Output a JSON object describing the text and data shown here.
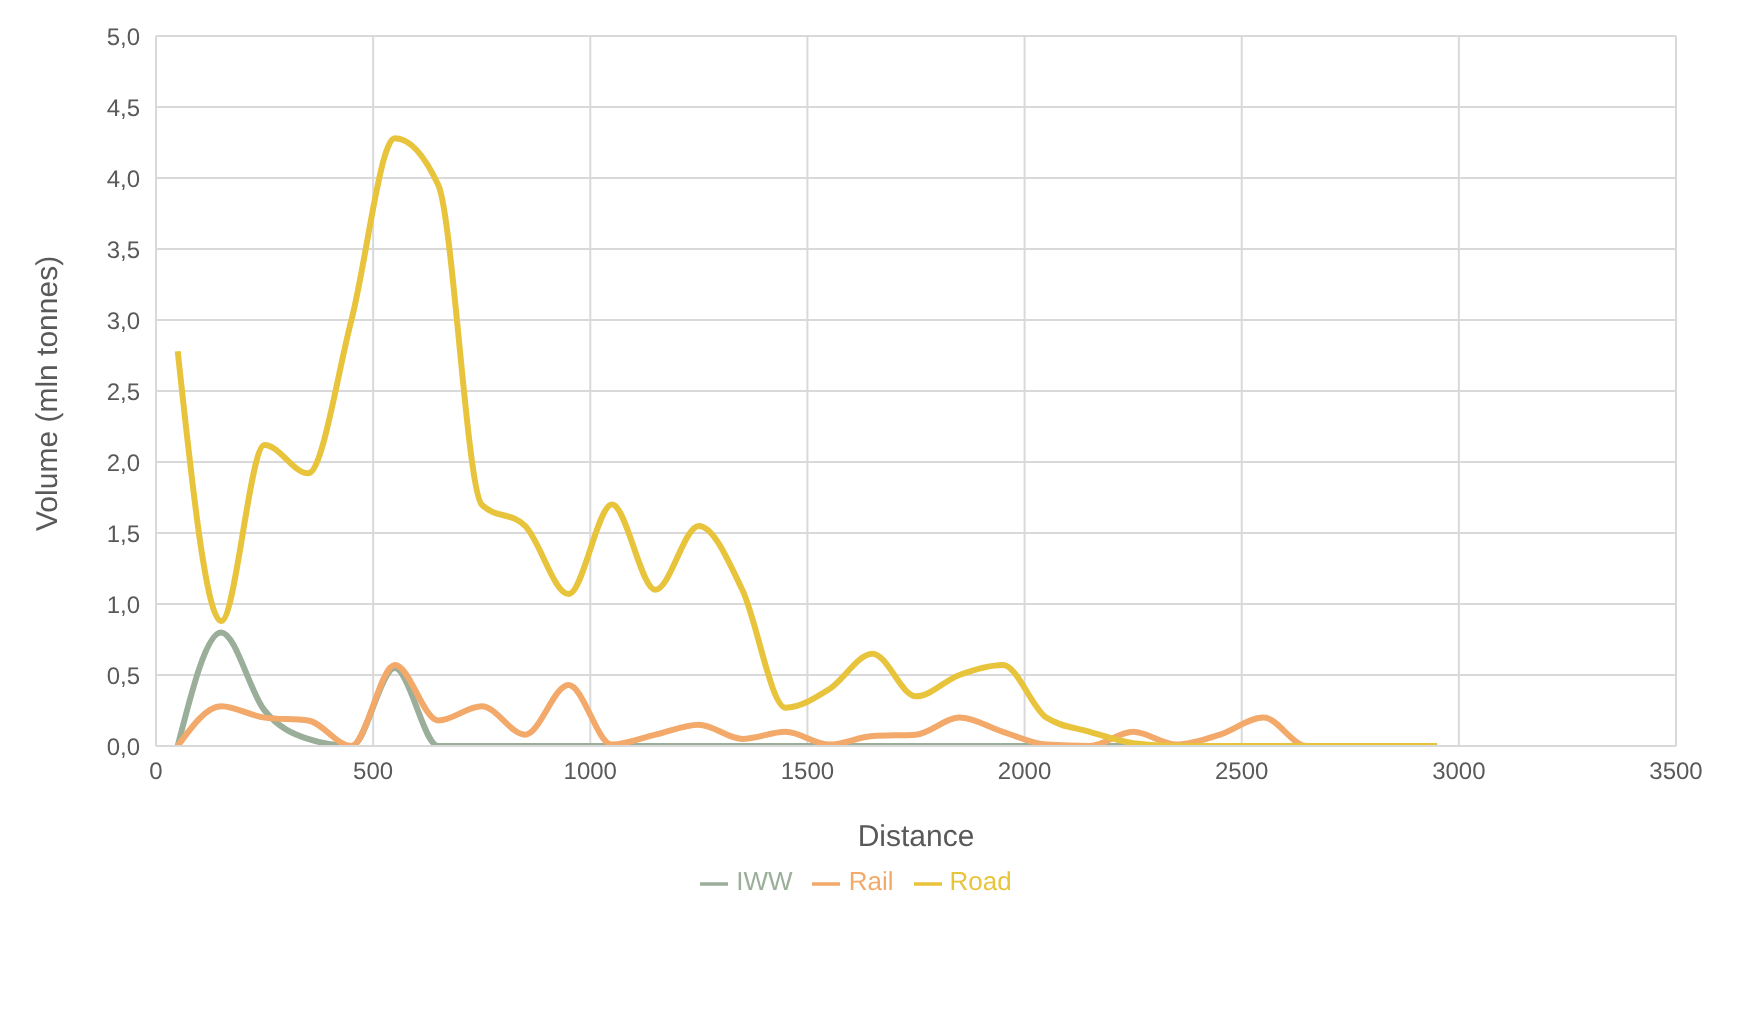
{
  "chart_data": {
    "type": "line",
    "xlabel": "Distance",
    "ylabel": "Volume (mln tonnes)",
    "x": [
      50,
      150,
      250,
      350,
      450,
      550,
      650,
      750,
      850,
      950,
      1050,
      1150,
      1250,
      1350,
      1450,
      1550,
      1650,
      1750,
      1850,
      1950,
      2050,
      2150,
      2250,
      2350,
      2450,
      2550,
      2650,
      2750,
      2850,
      2950
    ],
    "series": [
      {
        "name": "IWW",
        "color": "#9aae9a",
        "values": [
          0,
          0.8,
          0.25,
          0.05,
          0,
          0.55,
          0,
          0,
          0,
          0,
          0,
          0,
          0,
          0,
          0,
          0,
          0,
          0,
          0,
          0,
          0,
          0,
          0,
          0,
          null,
          null,
          null,
          null,
          null,
          null
        ]
      },
      {
        "name": "Rail",
        "color": "#f2a96a",
        "values": [
          0,
          0.28,
          0.2,
          0.18,
          0,
          0.57,
          0.18,
          0.28,
          0.08,
          0.43,
          0.01,
          0.08,
          0.15,
          0.05,
          0.1,
          0.01,
          0.07,
          0.08,
          0.2,
          0.1,
          0.01,
          0,
          0.1,
          0.01,
          0.08,
          0.2,
          0,
          0,
          null,
          null
        ]
      },
      {
        "name": "Road",
        "color": "#e8c43c",
        "values": [
          2.78,
          0.88,
          2.12,
          1.92,
          3.0,
          4.28,
          3.95,
          1.7,
          1.55,
          1.07,
          1.7,
          1.1,
          1.55,
          1.1,
          0.27,
          0.4,
          0.65,
          0.35,
          0.5,
          0.57,
          0.2,
          0.1,
          0.02,
          0,
          0,
          0,
          0,
          0,
          0,
          0
        ]
      }
    ],
    "xlim": [
      0,
      3500
    ],
    "xticks": [
      0,
      500,
      1000,
      1500,
      2000,
      2500,
      3000,
      3500
    ],
    "ylim": [
      0,
      5
    ],
    "yticks": [
      {
        "value": 0,
        "label": "0,0"
      },
      {
        "value": 0.5,
        "label": "0,5"
      },
      {
        "value": 1,
        "label": "1,0"
      },
      {
        "value": 1.5,
        "label": "1,5"
      },
      {
        "value": 2,
        "label": "2,0"
      },
      {
        "value": 2.5,
        "label": "2,5"
      },
      {
        "value": 3,
        "label": "3,0"
      },
      {
        "value": 3.5,
        "label": "3,5"
      },
      {
        "value": 4,
        "label": "4,0"
      },
      {
        "value": 4.5,
        "label": "4,5"
      },
      {
        "value": 5,
        "label": "5,0"
      }
    ],
    "grid": true,
    "legend": "bottom",
    "marker": "none",
    "line_style": "solid"
  }
}
